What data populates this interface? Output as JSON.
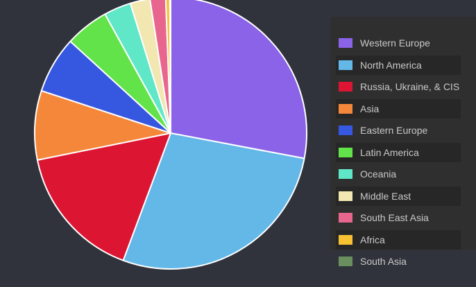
{
  "chart_data": {
    "type": "pie",
    "title": "",
    "legend_position": "right",
    "slices": [
      {
        "label": "Western Europe",
        "value": 28.6,
        "color": "#8a63e8"
      },
      {
        "label": "North America",
        "value": 28.3,
        "color": "#63b8e8"
      },
      {
        "label": "Russia, Ukraine, & CIS",
        "value": 16.5,
        "color": "#dc1632"
      },
      {
        "label": "Asia",
        "value": 8.4,
        "color": "#f5873a"
      },
      {
        "label": "Eastern Europe",
        "value": 6.9,
        "color": "#3657e0"
      },
      {
        "label": "Latin America",
        "value": 5.3,
        "color": "#62e349"
      },
      {
        "label": "Oceania",
        "value": 3.3,
        "color": "#5fe7c7"
      },
      {
        "label": "Middle East",
        "value": 2.4,
        "color": "#f2e6b1"
      },
      {
        "label": "South East Asia",
        "value": 1.9,
        "color": "#e8668d"
      },
      {
        "label": "Africa",
        "value": 0.5,
        "color": "#f7c232"
      },
      {
        "label": "South Asia",
        "value": 0.1,
        "color": "#6a8f5f"
      }
    ]
  }
}
